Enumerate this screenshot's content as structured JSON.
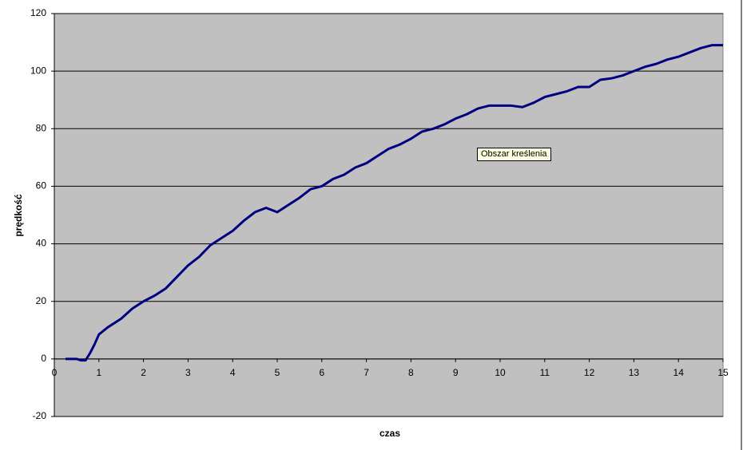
{
  "chart_data": {
    "type": "line",
    "xlabel": "czas",
    "ylabel": "prędkość",
    "tooltip": "Obszar kreślenia",
    "xlim": [
      0,
      15
    ],
    "xticks": [
      0,
      1,
      2,
      3,
      4,
      5,
      6,
      7,
      8,
      9,
      10,
      11,
      12,
      13,
      14,
      15
    ],
    "ylim": [
      -20,
      120
    ],
    "yticks": [
      -20,
      0,
      20,
      40,
      60,
      80,
      100,
      120
    ],
    "grid": true,
    "series": [
      {
        "color": "#000080",
        "x": [
          0.25,
          0.5,
          0.6,
          0.7,
          0.8,
          0.9,
          1.0,
          1.2,
          1.4,
          1.5,
          1.75,
          2,
          2.25,
          2.5,
          2.75,
          3,
          3.25,
          3.5,
          3.75,
          4,
          4.25,
          4.5,
          4.75,
          5,
          5.25,
          5.5,
          5.75,
          6,
          6.25,
          6.5,
          6.75,
          7,
          7.25,
          7.5,
          7.75,
          8,
          8.25,
          8.5,
          8.75,
          9,
          9.25,
          9.5,
          9.75,
          10,
          10.25,
          10.5,
          10.75,
          11,
          11.25,
          11.5,
          11.75,
          12,
          12.25,
          12.5,
          12.75,
          13,
          13.25,
          13.5,
          13.75,
          14,
          14.25,
          14.5,
          14.75,
          15
        ],
        "values": [
          0,
          0,
          -0.5,
          -0.5,
          2,
          5,
          8.5,
          11,
          13,
          14,
          17.5,
          20,
          22,
          24.5,
          28.5,
          32.5,
          35.5,
          39.5,
          42,
          44.5,
          48,
          51,
          52.5,
          51,
          53.5,
          56,
          59,
          60,
          62.5,
          64,
          66.5,
          68,
          70.5,
          73,
          74.5,
          76.5,
          79,
          80,
          81.5,
          83.5,
          85,
          87,
          88,
          88,
          88,
          87.5,
          89,
          91,
          92,
          93,
          94.5,
          94.5,
          97,
          97.5,
          98.5,
          100,
          101.5,
          102.5,
          104,
          105,
          106.5,
          108,
          109,
          109
        ]
      }
    ]
  }
}
